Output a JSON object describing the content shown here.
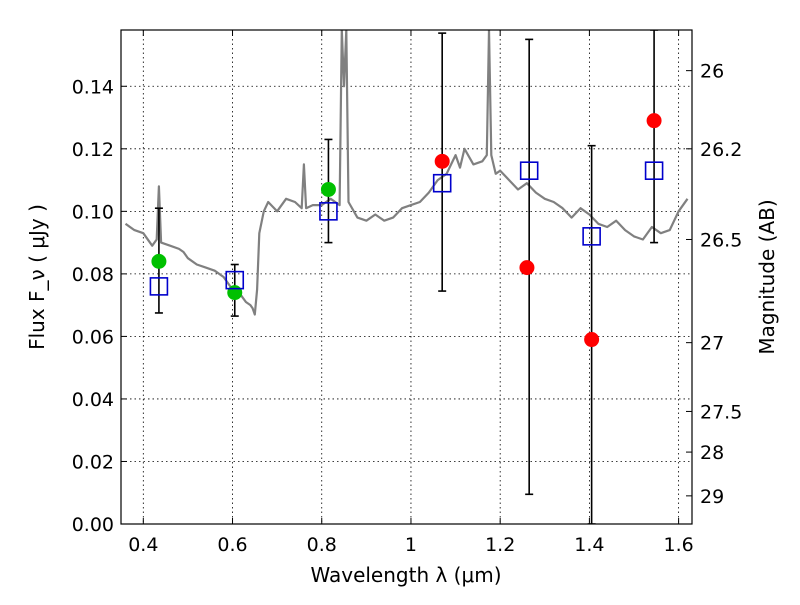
{
  "chart_data": {
    "type": "scatter",
    "xlabel": "Wavelength λ (μm)",
    "ylabel": "Flux F_ν ( μJy )",
    "y2label": "Magnitude (AB)",
    "xlim": [
      0.35,
      1.63
    ],
    "ylim": [
      0.0,
      0.158
    ],
    "grid": true,
    "x_ticks": [
      0.4,
      0.6,
      0.8,
      1.0,
      1.2,
      1.4,
      1.6
    ],
    "x_tick_labels": [
      "0.4",
      "0.6",
      "0.8",
      "1",
      "1.2",
      "1.4",
      "1.6"
    ],
    "y_ticks": [
      0.0,
      0.02,
      0.04,
      0.06,
      0.08,
      0.1,
      0.12,
      0.14
    ],
    "y_tick_labels": [
      "0.00",
      "0.02",
      "0.04",
      "0.06",
      "0.08",
      "0.10",
      "0.12",
      "0.14"
    ],
    "magnitude_ticks": [
      {
        "label": "26",
        "flux": 0.145
      },
      {
        "label": "26.2",
        "flux": 0.12
      },
      {
        "label": "26.5",
        "flux": 0.091
      },
      {
        "label": "27",
        "flux": 0.058
      },
      {
        "label": "27.5",
        "flux": 0.036
      },
      {
        "label": "28",
        "flux": 0.023
      },
      {
        "label": "29",
        "flux": 0.009
      }
    ],
    "series": [
      {
        "kind": "spectrum",
        "color": "#808080",
        "x": [
          0.36,
          0.38,
          0.4,
          0.42,
          0.43,
          0.435,
          0.44,
          0.46,
          0.48,
          0.49,
          0.5,
          0.52,
          0.54,
          0.56,
          0.58,
          0.6,
          0.61,
          0.62,
          0.63,
          0.64,
          0.645,
          0.65,
          0.655,
          0.66,
          0.67,
          0.68,
          0.7,
          0.72,
          0.74,
          0.755,
          0.76,
          0.765,
          0.78,
          0.8,
          0.82,
          0.84,
          0.845,
          0.85,
          0.855,
          0.86,
          0.88,
          0.9,
          0.92,
          0.94,
          0.96,
          0.98,
          1.0,
          1.02,
          1.04,
          1.06,
          1.08,
          1.09,
          1.1,
          1.11,
          1.12,
          1.14,
          1.16,
          1.17,
          1.175,
          1.18,
          1.19,
          1.2,
          1.22,
          1.24,
          1.26,
          1.28,
          1.3,
          1.32,
          1.34,
          1.36,
          1.38,
          1.4,
          1.42,
          1.44,
          1.46,
          1.48,
          1.5,
          1.52,
          1.54,
          1.56,
          1.58,
          1.6,
          1.62
        ],
        "y": [
          0.096,
          0.094,
          0.093,
          0.089,
          0.091,
          0.108,
          0.09,
          0.089,
          0.088,
          0.087,
          0.085,
          0.083,
          0.082,
          0.081,
          0.079,
          0.075,
          0.074,
          0.073,
          0.071,
          0.07,
          0.069,
          0.067,
          0.075,
          0.093,
          0.1,
          0.103,
          0.1,
          0.104,
          0.103,
          0.101,
          0.115,
          0.101,
          0.102,
          0.102,
          0.104,
          0.102,
          0.158,
          0.14,
          0.158,
          0.103,
          0.098,
          0.097,
          0.099,
          0.097,
          0.098,
          0.101,
          0.102,
          0.103,
          0.106,
          0.11,
          0.112,
          0.115,
          0.118,
          0.114,
          0.12,
          0.115,
          0.116,
          0.118,
          0.158,
          0.118,
          0.112,
          0.113,
          0.11,
          0.107,
          0.109,
          0.106,
          0.104,
          0.103,
          0.101,
          0.098,
          0.101,
          0.099,
          0.096,
          0.095,
          0.097,
          0.094,
          0.092,
          0.091,
          0.095,
          0.093,
          0.094,
          0.1,
          0.104
        ]
      },
      {
        "kind": "open-square",
        "color": "#0000cc",
        "x": [
          0.435,
          0.605,
          0.815,
          1.07,
          1.265,
          1.405,
          1.545
        ],
        "y": [
          0.076,
          0.078,
          0.1,
          0.109,
          0.113,
          0.092,
          0.113
        ],
        "yerr_low": [
          0.0675,
          0.0665,
          0.09,
          0.0745,
          0.0095,
          0.0,
          0.09
        ],
        "yerr_high": [
          0.101,
          0.083,
          0.123,
          0.157,
          0.155,
          0.121,
          0.158
        ]
      },
      {
        "kind": "filled-circle",
        "color": "#00c000",
        "x": [
          0.435,
          0.605,
          0.815
        ],
        "y": [
          0.084,
          0.074,
          0.107
        ]
      },
      {
        "kind": "filled-circle",
        "color": "#ff0000",
        "x": [
          1.07,
          1.26,
          1.405,
          1.545
        ],
        "y": [
          0.116,
          0.082,
          0.059,
          0.129
        ]
      }
    ]
  }
}
